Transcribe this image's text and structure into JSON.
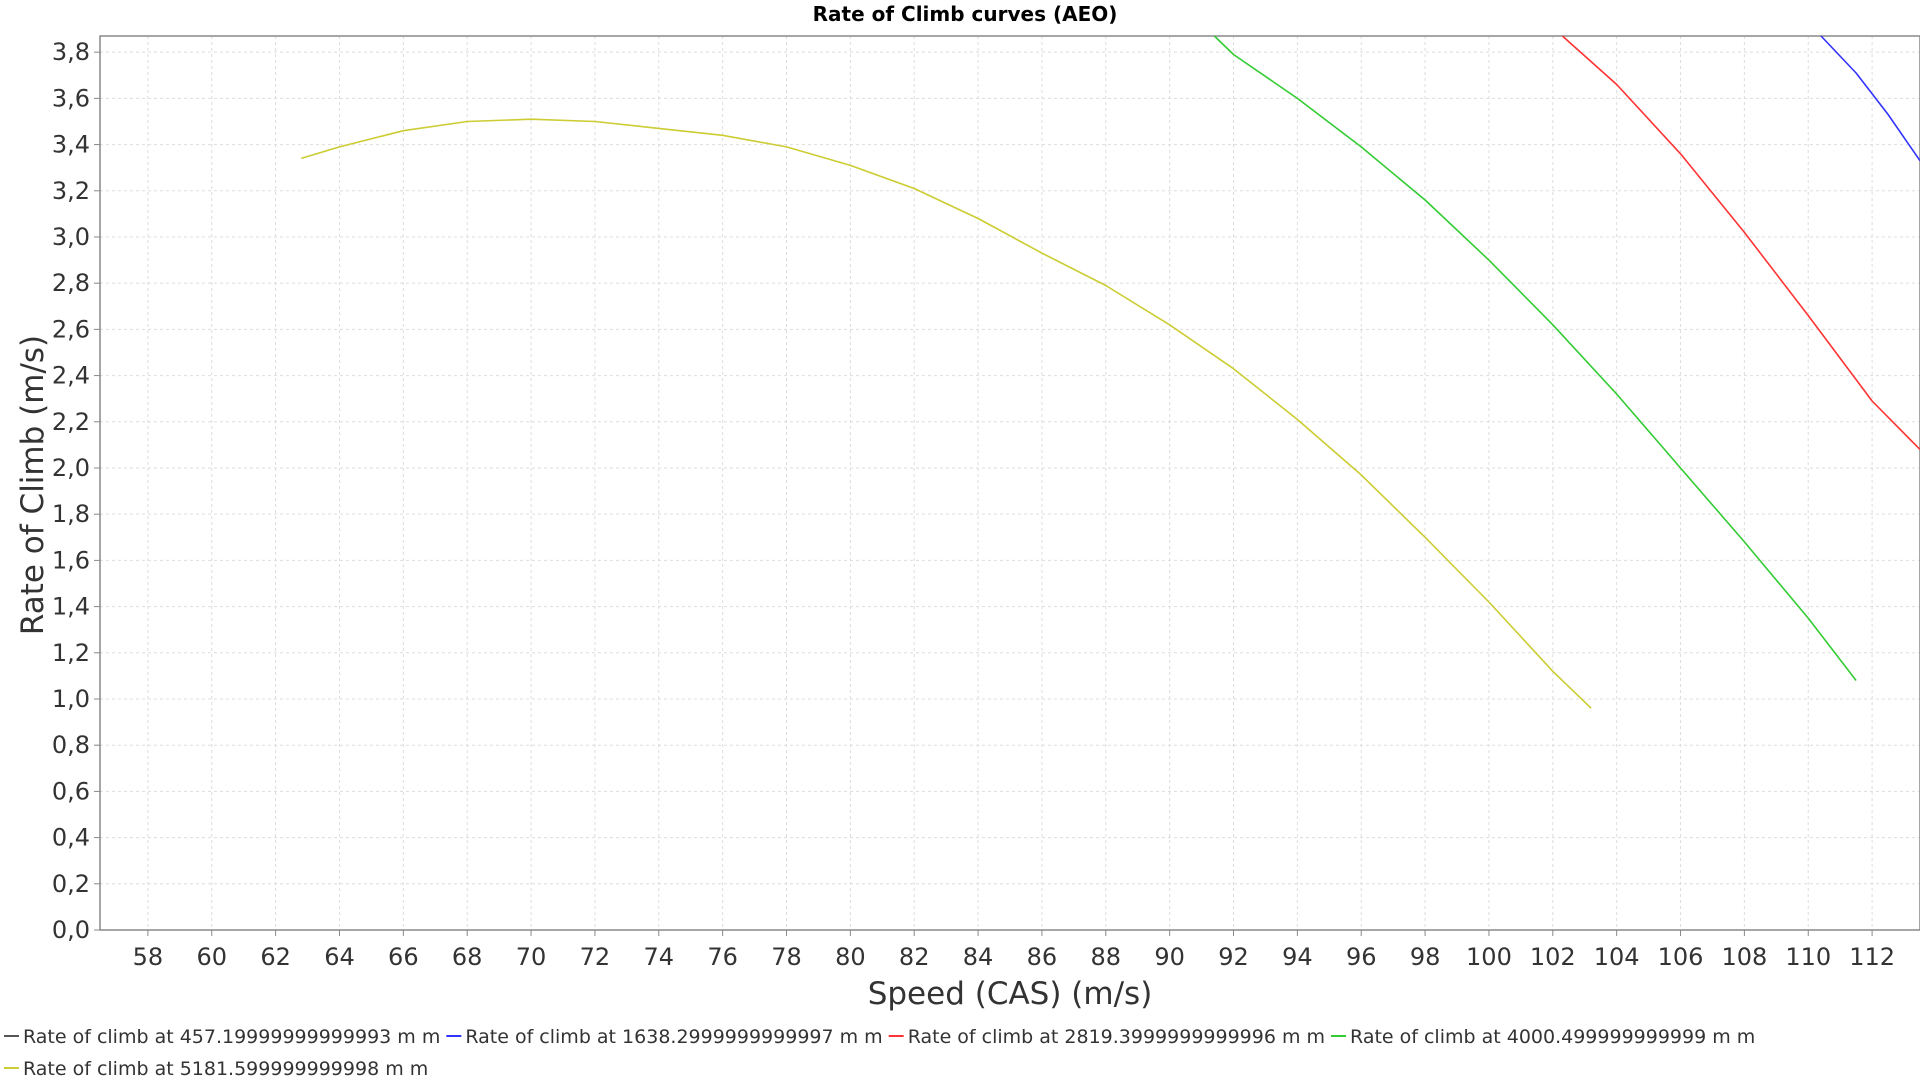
{
  "chart_data": {
    "type": "line",
    "title": "Rate of Climb curves (AEO)",
    "xlabel": "Speed (CAS) (m/s)",
    "ylabel": "Rate of Climb (m/s)",
    "xlim": [
      56.5,
      113.5
    ],
    "ylim": [
      0.0,
      3.87
    ],
    "grid": true,
    "legend_position": "bottom",
    "x_ticks": [
      "58",
      "60",
      "62",
      "64",
      "66",
      "68",
      "70",
      "72",
      "74",
      "76",
      "78",
      "80",
      "82",
      "84",
      "86",
      "88",
      "90",
      "92",
      "94",
      "96",
      "98",
      "100",
      "102",
      "104",
      "106",
      "108",
      "110",
      "112"
    ],
    "y_ticks": [
      "0,0",
      "0,2",
      "0,4",
      "0,6",
      "0,8",
      "1,0",
      "1,2",
      "1,4",
      "1,6",
      "1,8",
      "2,0",
      "2,2",
      "2,4",
      "2,6",
      "2,8",
      "3,0",
      "3,2",
      "3,4",
      "3,6",
      "3,8"
    ],
    "series": [
      {
        "name": "Rate of climb at 457.19999999999993 m m",
        "color": "#555555",
        "x": [],
        "y": []
      },
      {
        "name": "Rate of climb at 1638.2999999999997 m m",
        "color": "#3333ff",
        "x": [
          110.4,
          111.5,
          112.5,
          113.5
        ],
        "y": [
          3.87,
          3.71,
          3.53,
          3.33
        ]
      },
      {
        "name": "Rate of climb at 2819.3999999999996 m m",
        "color": "#ff3333",
        "x": [
          102.3,
          104.0,
          106.0,
          108.0,
          110.0,
          112.0,
          113.5
        ],
        "y": [
          3.87,
          3.66,
          3.36,
          3.02,
          2.66,
          2.29,
          2.08
        ]
      },
      {
        "name": "Rate of climb at 4000.499999999999 m m",
        "color": "#33cc33",
        "x": [
          91.4,
          92.0,
          94.0,
          96.0,
          98.0,
          100.0,
          102.0,
          104.0,
          106.0,
          108.0,
          110.0,
          111.5
        ],
        "y": [
          3.87,
          3.79,
          3.6,
          3.39,
          3.16,
          2.9,
          2.62,
          2.32,
          2.0,
          1.68,
          1.35,
          1.08
        ]
      },
      {
        "name": "Rate of climb at 5181.599999999998 m m",
        "color": "#cccc33",
        "x": [
          62.8,
          64,
          66,
          68,
          70,
          72,
          74,
          76,
          78,
          80,
          82,
          84,
          86,
          88,
          90,
          92,
          94,
          96,
          98,
          100,
          102,
          103.2
        ],
        "y": [
          3.34,
          3.39,
          3.46,
          3.5,
          3.51,
          3.5,
          3.47,
          3.44,
          3.39,
          3.31,
          3.21,
          3.08,
          2.93,
          2.79,
          2.62,
          2.43,
          2.21,
          1.97,
          1.7,
          1.42,
          1.12,
          0.96
        ]
      }
    ]
  }
}
